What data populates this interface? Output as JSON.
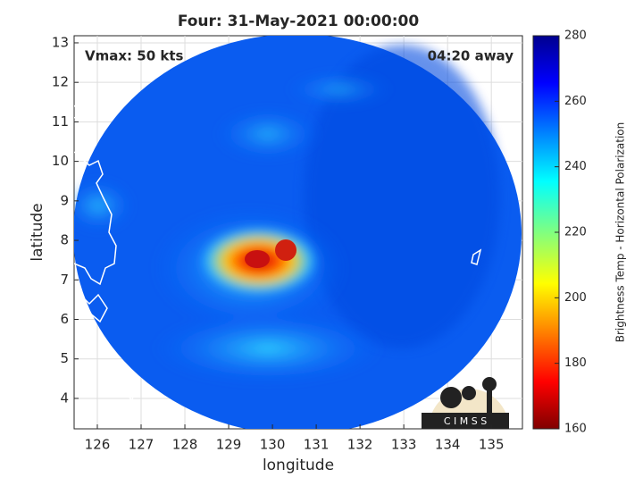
{
  "chart_data": {
    "type": "map",
    "title": "Four: 31-May-2021 00:00:00",
    "annotations": [
      "Vmax: 50 kts",
      "04:20 away"
    ],
    "xlabel": "longitude",
    "ylabel": "latitude",
    "xlim": [
      125.47,
      135.71
    ],
    "ylim": [
      3.23,
      13.18
    ],
    "xticks": [
      126,
      127,
      128,
      129,
      130,
      131,
      132,
      133,
      134,
      135
    ],
    "yticks": [
      4,
      5,
      6,
      7,
      8,
      9,
      10,
      11,
      12,
      13
    ],
    "grid": true,
    "colorbar": {
      "label": "Brightness Temp - Horizontal Polarization",
      "lim": [
        160,
        280
      ],
      "ticks": [
        160,
        180,
        200,
        220,
        240,
        260,
        280
      ]
    },
    "logo": "C I M S S"
  }
}
